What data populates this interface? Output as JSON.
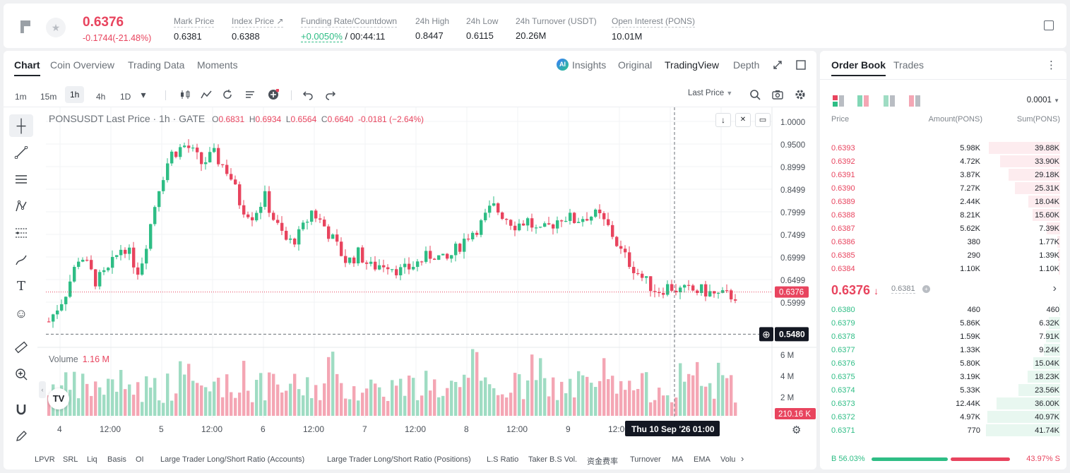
{
  "header": {
    "price": "0.6376",
    "change": "-0.1744(-21.48%)",
    "stats": [
      {
        "label": "Mark Price",
        "value": "0.6381"
      },
      {
        "label": "Index Price ↗",
        "value": "0.6388"
      },
      {
        "label": "Funding Rate/Countdown",
        "value": "+0.0050%",
        "value2": "/ 00:44:11"
      },
      {
        "label": "24h High",
        "value": "0.8447"
      },
      {
        "label": "24h Low",
        "value": "0.6115"
      },
      {
        "label": "24h Turnover (USDT)",
        "value": "20.26M"
      },
      {
        "label": "Open Interest (PONS)",
        "value": "10.01M"
      }
    ]
  },
  "chart_tabs": [
    "Chart",
    "Coin Overview",
    "Trading Data",
    "Moments"
  ],
  "chart_views": {
    "insights": "Insights",
    "original": "Original",
    "tradingview": "TradingView",
    "depth": "Depth"
  },
  "timeframes": [
    "1m",
    "15m",
    "1h",
    "4h",
    "1D"
  ],
  "price_type": "Last Price",
  "legend": {
    "symbol": "PONSUSDT Last Price · 1h · GATE",
    "o": "0.6831",
    "h": "0.6934",
    "l": "0.6564",
    "c": "0.6640",
    "chg": "-0.0181 (−2.64%)"
  },
  "volume_legend": {
    "label": "Volume",
    "value": "1.16 M"
  },
  "price_axis": [
    "1.0000",
    "0.9500",
    "0.8999",
    "0.8499",
    "0.7999",
    "0.7499",
    "0.6999",
    "0.6499",
    "0.5999"
  ],
  "last_price_tag": "0.6376",
  "crosshair_price_tag": "0.5480",
  "volume_axis": [
    "6 M",
    "4 M",
    "2 M"
  ],
  "volume_tag": "210.16 K",
  "time_axis": [
    "4",
    "12:00",
    "5",
    "12:00",
    "6",
    "12:00",
    "7",
    "12:00",
    "8",
    "12:00",
    "9",
    "12:00",
    "00",
    "1("
  ],
  "crosshair_time": "Thu 10 Sep '26   01:00",
  "indicators": [
    "LPVR",
    "SRL",
    "Liq",
    "Basis",
    "OI",
    "Large Trader Long/Short Ratio (Accounts)",
    "Large Trader Long/Short Ratio (Positions)",
    "L.S Ratio",
    "Taker B.S Vol.",
    "资金费率",
    "Turnover",
    "MA",
    "EMA",
    "Volu"
  ],
  "chart_data": {
    "type": "candlestick",
    "price_range": [
      0.55,
      1.0
    ],
    "colors": {
      "up": "#2ebd85",
      "down": "#e8445e",
      "up_vol": "#9fdcc3",
      "down_vol": "#f4a6b4"
    }
  },
  "orderbook": {
    "tabs": [
      "Order Book",
      "Trades"
    ],
    "precision": "0.0001",
    "columns": [
      "Price",
      "Amount(PONS)",
      "Sum(PONS)"
    ],
    "asks": [
      {
        "p": "0.6393",
        "a": "5.98K",
        "s": "39.88K",
        "d": 0.96
      },
      {
        "p": "0.6392",
        "a": "4.72K",
        "s": "33.90K",
        "d": 0.81
      },
      {
        "p": "0.6391",
        "a": "3.87K",
        "s": "29.18K",
        "d": 0.7
      },
      {
        "p": "0.6390",
        "a": "7.27K",
        "s": "25.31K",
        "d": 0.61
      },
      {
        "p": "0.6389",
        "a": "2.44K",
        "s": "18.04K",
        "d": 0.43
      },
      {
        "p": "0.6388",
        "a": "8.21K",
        "s": "15.60K",
        "d": 0.37
      },
      {
        "p": "0.6387",
        "a": "5.62K",
        "s": "7.39K",
        "d": 0.18
      },
      {
        "p": "0.6386",
        "a": "380",
        "s": "1.77K",
        "d": 0.04
      },
      {
        "p": "0.6385",
        "a": "290",
        "s": "1.39K",
        "d": 0.03
      },
      {
        "p": "0.6384",
        "a": "1.10K",
        "s": "1.10K",
        "d": 0.02
      }
    ],
    "mid_price": "0.6376",
    "mark_price": "0.6381",
    "bids": [
      {
        "p": "0.6380",
        "a": "460",
        "s": "460",
        "d": 0.01
      },
      {
        "p": "0.6379",
        "a": "5.86K",
        "s": "6.32K",
        "d": 0.15
      },
      {
        "p": "0.6378",
        "a": "1.59K",
        "s": "7.91K",
        "d": 0.19
      },
      {
        "p": "0.6377",
        "a": "1.33K",
        "s": "9.24K",
        "d": 0.22
      },
      {
        "p": "0.6376",
        "a": "5.80K",
        "s": "15.04K",
        "d": 0.36
      },
      {
        "p": "0.6375",
        "a": "3.19K",
        "s": "18.23K",
        "d": 0.44
      },
      {
        "p": "0.6374",
        "a": "5.33K",
        "s": "23.56K",
        "d": 0.56
      },
      {
        "p": "0.6373",
        "a": "12.44K",
        "s": "36.00K",
        "d": 0.86
      },
      {
        "p": "0.6372",
        "a": "4.97K",
        "s": "40.97K",
        "d": 0.98
      },
      {
        "p": "0.6371",
        "a": "770",
        "s": "41.74K",
        "d": 1.0
      }
    ],
    "buy_ratio": "B 56.03%",
    "sell_ratio": "43.97% S",
    "buy_fraction": 0.5603
  }
}
